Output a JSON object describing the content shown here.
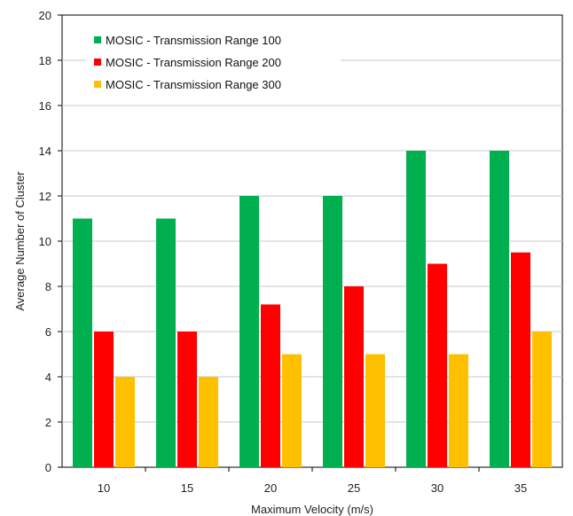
{
  "chart_data": {
    "type": "bar",
    "title": "",
    "xlabel": "Maximum Velocity (m/s)",
    "ylabel": "Average Number of Cluster",
    "ylim": [
      0,
      20
    ],
    "yticks": [
      0,
      2,
      4,
      6,
      8,
      10,
      12,
      14,
      16,
      18,
      20
    ],
    "categories": [
      "10",
      "15",
      "20",
      "25",
      "30",
      "35"
    ],
    "grid": true,
    "legend_position": "top-left",
    "series": [
      {
        "name": "MOSIC - Transmission Range 100",
        "color": "#00b050",
        "values": [
          11,
          11,
          12,
          12,
          14,
          14
        ]
      },
      {
        "name": "MOSIC - Transmission Range 200",
        "color": "#ff0000",
        "values": [
          6,
          6,
          7.2,
          8,
          9,
          9.5
        ]
      },
      {
        "name": "MOSIC - Transmission Range 300",
        "color": "#ffc000",
        "values": [
          4,
          4,
          5,
          5,
          5,
          6
        ]
      }
    ]
  }
}
